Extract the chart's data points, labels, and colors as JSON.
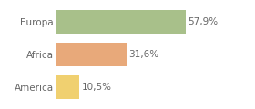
{
  "categories": [
    "Europa",
    "Africa",
    "America"
  ],
  "values": [
    57.9,
    31.6,
    10.5
  ],
  "labels": [
    "57,9%",
    "31,6%",
    "10,5%"
  ],
  "bar_colors": [
    "#a8c08a",
    "#e8a97a",
    "#f0d070"
  ],
  "background_color": "#ffffff",
  "xlim": [
    0,
    75
  ],
  "label_fontsize": 7.5,
  "tick_fontsize": 7.5,
  "bar_height": 0.72,
  "figsize": [
    2.8,
    1.2
  ],
  "dpi": 100
}
